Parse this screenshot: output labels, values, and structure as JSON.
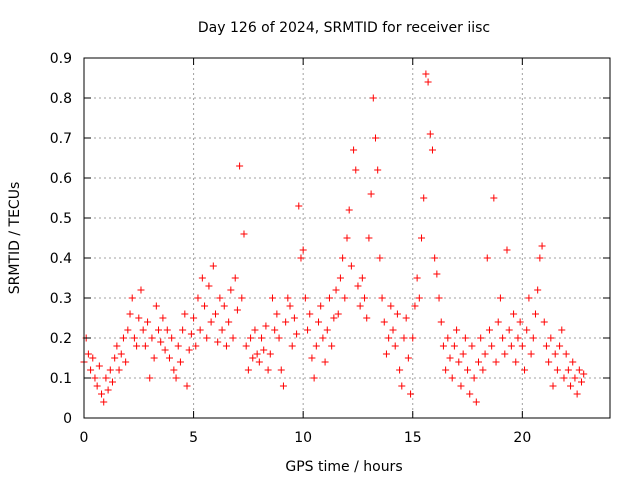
{
  "chart_data": {
    "type": "scatter",
    "title": "Day 126 of 2024, SRMTID for receiver iisc",
    "xlabel": "GPS time / hours",
    "ylabel": "SRMTID / TECUs",
    "xlim": [
      0,
      24
    ],
    "ylim": [
      0,
      0.9
    ],
    "grid": true,
    "marker": "+",
    "marker_color": "#ff0000",
    "x_ticks": [
      0,
      5,
      10,
      15,
      20
    ],
    "x_tick_labels": [
      "0",
      "5",
      "10",
      "15",
      "20"
    ],
    "y_ticks": [
      0,
      0.1,
      0.2,
      0.3,
      0.4,
      0.5,
      0.6,
      0.7,
      0.8,
      0.9
    ],
    "y_tick_labels": [
      "0",
      "0.1",
      "0.2",
      "0.3",
      "0.4",
      "0.5",
      "0.6",
      "0.7",
      "0.8",
      "0.9"
    ],
    "data_x_range": [
      0,
      22.8
    ],
    "series": [
      {
        "name": "SRMTID",
        "points": [
          [
            0.0,
            0.14
          ],
          [
            0.1,
            0.2
          ],
          [
            0.2,
            0.16
          ],
          [
            0.3,
            0.12
          ],
          [
            0.4,
            0.15
          ],
          [
            0.5,
            0.1
          ],
          [
            0.6,
            0.08
          ],
          [
            0.7,
            0.13
          ],
          [
            0.8,
            0.06
          ],
          [
            0.9,
            0.04
          ],
          [
            1.0,
            0.1
          ],
          [
            1.1,
            0.07
          ],
          [
            1.2,
            0.12
          ],
          [
            1.3,
            0.09
          ],
          [
            1.4,
            0.15
          ],
          [
            1.5,
            0.18
          ],
          [
            1.6,
            0.12
          ],
          [
            1.7,
            0.16
          ],
          [
            1.8,
            0.2
          ],
          [
            1.9,
            0.14
          ],
          [
            2.0,
            0.22
          ],
          [
            2.1,
            0.26
          ],
          [
            2.2,
            0.3
          ],
          [
            2.3,
            0.2
          ],
          [
            2.4,
            0.18
          ],
          [
            2.5,
            0.25
          ],
          [
            2.6,
            0.32
          ],
          [
            2.7,
            0.22
          ],
          [
            2.8,
            0.18
          ],
          [
            2.9,
            0.24
          ],
          [
            3.0,
            0.1
          ],
          [
            3.1,
            0.2
          ],
          [
            3.2,
            0.15
          ],
          [
            3.3,
            0.28
          ],
          [
            3.4,
            0.22
          ],
          [
            3.5,
            0.19
          ],
          [
            3.6,
            0.25
          ],
          [
            3.7,
            0.17
          ],
          [
            3.8,
            0.22
          ],
          [
            3.9,
            0.15
          ],
          [
            4.0,
            0.2
          ],
          [
            4.1,
            0.12
          ],
          [
            4.2,
            0.1
          ],
          [
            4.3,
            0.18
          ],
          [
            4.4,
            0.14
          ],
          [
            4.5,
            0.22
          ],
          [
            4.6,
            0.26
          ],
          [
            4.7,
            0.08
          ],
          [
            4.8,
            0.17
          ],
          [
            4.9,
            0.21
          ],
          [
            5.0,
            0.25
          ],
          [
            5.1,
            0.18
          ],
          [
            5.2,
            0.3
          ],
          [
            5.3,
            0.22
          ],
          [
            5.4,
            0.35
          ],
          [
            5.5,
            0.28
          ],
          [
            5.6,
            0.2
          ],
          [
            5.7,
            0.33
          ],
          [
            5.8,
            0.24
          ],
          [
            5.9,
            0.38
          ],
          [
            6.0,
            0.26
          ],
          [
            6.1,
            0.19
          ],
          [
            6.2,
            0.3
          ],
          [
            6.3,
            0.22
          ],
          [
            6.4,
            0.28
          ],
          [
            6.5,
            0.18
          ],
          [
            6.6,
            0.24
          ],
          [
            6.7,
            0.32
          ],
          [
            6.8,
            0.2
          ],
          [
            6.9,
            0.35
          ],
          [
            7.0,
            0.27
          ],
          [
            7.1,
            0.63
          ],
          [
            7.2,
            0.3
          ],
          [
            7.3,
            0.46
          ],
          [
            7.4,
            0.18
          ],
          [
            7.5,
            0.12
          ],
          [
            7.6,
            0.2
          ],
          [
            7.7,
            0.15
          ],
          [
            7.8,
            0.22
          ],
          [
            7.9,
            0.16
          ],
          [
            8.0,
            0.14
          ],
          [
            8.1,
            0.2
          ],
          [
            8.2,
            0.17
          ],
          [
            8.3,
            0.23
          ],
          [
            8.4,
            0.12
          ],
          [
            8.5,
            0.16
          ],
          [
            8.6,
            0.3
          ],
          [
            8.7,
            0.22
          ],
          [
            8.8,
            0.26
          ],
          [
            8.9,
            0.2
          ],
          [
            9.0,
            0.12
          ],
          [
            9.1,
            0.08
          ],
          [
            9.2,
            0.24
          ],
          [
            9.3,
            0.3
          ],
          [
            9.4,
            0.28
          ],
          [
            9.5,
            0.18
          ],
          [
            9.6,
            0.25
          ],
          [
            9.7,
            0.21
          ],
          [
            9.8,
            0.53
          ],
          [
            9.9,
            0.4
          ],
          [
            10.0,
            0.42
          ],
          [
            10.1,
            0.3
          ],
          [
            10.2,
            0.22
          ],
          [
            10.3,
            0.26
          ],
          [
            10.4,
            0.15
          ],
          [
            10.5,
            0.1
          ],
          [
            10.6,
            0.18
          ],
          [
            10.7,
            0.24
          ],
          [
            10.8,
            0.28
          ],
          [
            10.9,
            0.2
          ],
          [
            11.0,
            0.14
          ],
          [
            11.1,
            0.22
          ],
          [
            11.2,
            0.3
          ],
          [
            11.3,
            0.18
          ],
          [
            11.4,
            0.25
          ],
          [
            11.5,
            0.32
          ],
          [
            11.6,
            0.26
          ],
          [
            11.7,
            0.35
          ],
          [
            11.8,
            0.4
          ],
          [
            11.9,
            0.3
          ],
          [
            12.0,
            0.45
          ],
          [
            12.1,
            0.52
          ],
          [
            12.2,
            0.38
          ],
          [
            12.3,
            0.67
          ],
          [
            12.4,
            0.62
          ],
          [
            12.5,
            0.33
          ],
          [
            12.6,
            0.28
          ],
          [
            12.7,
            0.35
          ],
          [
            12.8,
            0.3
          ],
          [
            12.9,
            0.25
          ],
          [
            13.0,
            0.45
          ],
          [
            13.1,
            0.56
          ],
          [
            13.2,
            0.8
          ],
          [
            13.3,
            0.7
          ],
          [
            13.4,
            0.62
          ],
          [
            13.5,
            0.4
          ],
          [
            13.6,
            0.3
          ],
          [
            13.7,
            0.24
          ],
          [
            13.8,
            0.16
          ],
          [
            13.9,
            0.2
          ],
          [
            14.0,
            0.28
          ],
          [
            14.1,
            0.22
          ],
          [
            14.2,
            0.18
          ],
          [
            14.3,
            0.26
          ],
          [
            14.4,
            0.12
          ],
          [
            14.5,
            0.08
          ],
          [
            14.6,
            0.2
          ],
          [
            14.7,
            0.25
          ],
          [
            14.8,
            0.15
          ],
          [
            14.9,
            0.06
          ],
          [
            15.0,
            0.2
          ],
          [
            15.1,
            0.28
          ],
          [
            15.2,
            0.35
          ],
          [
            15.3,
            0.3
          ],
          [
            15.4,
            0.45
          ],
          [
            15.5,
            0.55
          ],
          [
            15.6,
            0.86
          ],
          [
            15.7,
            0.84
          ],
          [
            15.8,
            0.71
          ],
          [
            15.9,
            0.67
          ],
          [
            16.0,
            0.4
          ],
          [
            16.1,
            0.36
          ],
          [
            16.2,
            0.3
          ],
          [
            16.3,
            0.24
          ],
          [
            16.4,
            0.18
          ],
          [
            16.5,
            0.12
          ],
          [
            16.6,
            0.2
          ],
          [
            16.7,
            0.15
          ],
          [
            16.8,
            0.1
          ],
          [
            16.9,
            0.18
          ],
          [
            17.0,
            0.22
          ],
          [
            17.1,
            0.14
          ],
          [
            17.2,
            0.08
          ],
          [
            17.3,
            0.16
          ],
          [
            17.4,
            0.2
          ],
          [
            17.5,
            0.12
          ],
          [
            17.6,
            0.06
          ],
          [
            17.7,
            0.18
          ],
          [
            17.8,
            0.1
          ],
          [
            17.9,
            0.04
          ],
          [
            18.0,
            0.14
          ],
          [
            18.1,
            0.2
          ],
          [
            18.2,
            0.12
          ],
          [
            18.3,
            0.16
          ],
          [
            18.4,
            0.4
          ],
          [
            18.5,
            0.22
          ],
          [
            18.6,
            0.18
          ],
          [
            18.7,
            0.55
          ],
          [
            18.8,
            0.14
          ],
          [
            18.9,
            0.24
          ],
          [
            19.0,
            0.3
          ],
          [
            19.1,
            0.2
          ],
          [
            19.2,
            0.16
          ],
          [
            19.3,
            0.42
          ],
          [
            19.4,
            0.22
          ],
          [
            19.5,
            0.18
          ],
          [
            19.6,
            0.26
          ],
          [
            19.7,
            0.14
          ],
          [
            19.8,
            0.2
          ],
          [
            19.9,
            0.24
          ],
          [
            20.0,
            0.18
          ],
          [
            20.1,
            0.12
          ],
          [
            20.2,
            0.22
          ],
          [
            20.3,
            0.3
          ],
          [
            20.4,
            0.16
          ],
          [
            20.5,
            0.2
          ],
          [
            20.6,
            0.26
          ],
          [
            20.7,
            0.32
          ],
          [
            20.8,
            0.4
          ],
          [
            20.9,
            0.43
          ],
          [
            21.0,
            0.24
          ],
          [
            21.1,
            0.18
          ],
          [
            21.2,
            0.14
          ],
          [
            21.3,
            0.2
          ],
          [
            21.4,
            0.08
          ],
          [
            21.5,
            0.16
          ],
          [
            21.6,
            0.12
          ],
          [
            21.7,
            0.18
          ],
          [
            21.8,
            0.22
          ],
          [
            21.9,
            0.1
          ],
          [
            22.0,
            0.16
          ],
          [
            22.1,
            0.12
          ],
          [
            22.2,
            0.08
          ],
          [
            22.3,
            0.14
          ],
          [
            22.4,
            0.1
          ],
          [
            22.5,
            0.06
          ],
          [
            22.6,
            0.12
          ],
          [
            22.7,
            0.09
          ],
          [
            22.8,
            0.11
          ]
        ]
      }
    ]
  }
}
